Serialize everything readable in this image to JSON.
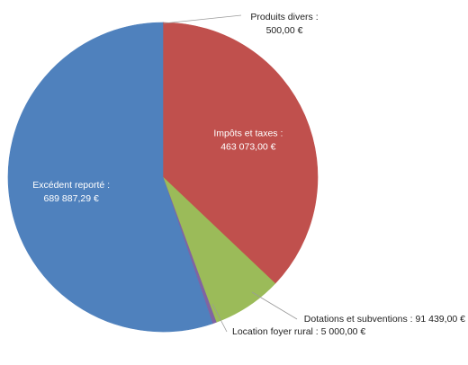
{
  "chart_data": {
    "type": "pie",
    "start_angle_deg": 0,
    "direction": "clockwise",
    "series": [
      {
        "label": "Produits divers :",
        "value_label": "500,00 €",
        "value": 500.0,
        "color": "#4f81bd",
        "label_position": "outside-top"
      },
      {
        "label": "Impôts et taxes :",
        "value_label": "463 073,00 €",
        "value": 463073.0,
        "color": "#c0504d",
        "label_position": "inside"
      },
      {
        "label": "Dotations et subventions :",
        "value_label": "91 439,00 €",
        "value": 91439.0,
        "color": "#9bbb59",
        "label_position": "outside-bottom-right"
      },
      {
        "label": "Location foyer rural :",
        "value_label": "5 000,00 €",
        "value": 5000.0,
        "color": "#8064a2",
        "label_position": "outside-bottom"
      },
      {
        "label": "Excédent reporté :",
        "value_label": "689 887,29 €",
        "value": 689887.29,
        "color": "#4f81bd",
        "label_position": "inside"
      }
    ]
  }
}
